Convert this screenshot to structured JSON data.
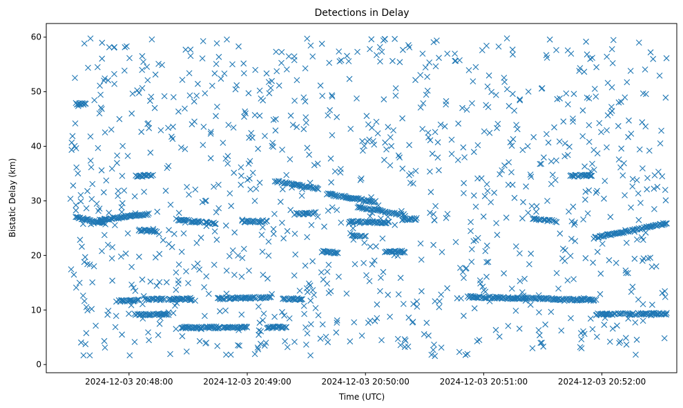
{
  "chart_data": {
    "type": "scatter",
    "title": "Detections in Delay",
    "xlabel": "Time (UTC)",
    "ylabel": "Bistatic Delay (km)",
    "marker": "x",
    "color": "#1f77b4",
    "xlim_seconds": [
      -42,
      278
    ],
    "ylim": [
      -1.5,
      62.5
    ],
    "x_origin": "2024-12-03 20:48:00",
    "xticks": [
      {
        "t": 0,
        "label": "2024-12-03 20:48:00"
      },
      {
        "t": 60,
        "label": "2024-12-03 20:49:00"
      },
      {
        "t": 120,
        "label": "2024-12-03 20:50:00"
      },
      {
        "t": 180,
        "label": "2024-12-03 20:51:00"
      },
      {
        "t": 240,
        "label": "2024-12-03 20:52:00"
      }
    ],
    "yticks": [
      0,
      10,
      20,
      30,
      40,
      50,
      60
    ],
    "tracks": [
      {
        "t0": -27,
        "t1": -12,
        "y0": 27.0,
        "y1": 25.8
      },
      {
        "t0": -27,
        "t1": -22,
        "y0": 47.8,
        "y1": 47.8
      },
      {
        "t0": -15,
        "t1": 10,
        "y0": 26.5,
        "y1": 27.6
      },
      {
        "t0": -5,
        "t1": 5,
        "y0": 11.6,
        "y1": 11.8
      },
      {
        "t0": 2,
        "t1": 20,
        "y0": 9.2,
        "y1": 9.2
      },
      {
        "t0": 3,
        "t1": 12,
        "y0": 34.5,
        "y1": 34.7
      },
      {
        "t0": 8,
        "t1": 18,
        "y0": 11.9,
        "y1": 12.0
      },
      {
        "t0": 5,
        "t1": 14,
        "y0": 24.6,
        "y1": 24.4
      },
      {
        "t0": 20,
        "t1": 32,
        "y0": 12.0,
        "y1": 12.0
      },
      {
        "t0": 24,
        "t1": 44,
        "y0": 26.6,
        "y1": 25.8
      },
      {
        "t0": 26,
        "t1": 60,
        "y0": 6.8,
        "y1": 6.8
      },
      {
        "t0": 45,
        "t1": 72,
        "y0": 12.1,
        "y1": 12.3
      },
      {
        "t0": 57,
        "t1": 70,
        "y0": 26.2,
        "y1": 26.3
      },
      {
        "t0": 70,
        "t1": 80,
        "y0": 6.8,
        "y1": 6.8
      },
      {
        "t0": 74,
        "t1": 96,
        "y0": 33.6,
        "y1": 32.2
      },
      {
        "t0": 78,
        "t1": 88,
        "y0": 12.0,
        "y1": 12.0
      },
      {
        "t0": 84,
        "t1": 94,
        "y0": 27.6,
        "y1": 27.7
      },
      {
        "t0": 98,
        "t1": 106,
        "y0": 20.7,
        "y1": 20.5
      },
      {
        "t0": 100,
        "t1": 125,
        "y0": 31.3,
        "y1": 29.8
      },
      {
        "t0": 112,
        "t1": 132,
        "y0": 26.2,
        "y1": 26.0
      },
      {
        "t0": 116,
        "t1": 140,
        "y0": 28.9,
        "y1": 27.4
      },
      {
        "t0": 113,
        "t1": 120,
        "y0": 23.6,
        "y1": 23.6
      },
      {
        "t0": 130,
        "t1": 140,
        "y0": 20.6,
        "y1": 20.7
      },
      {
        "t0": 138,
        "t1": 146,
        "y0": 26.6,
        "y1": 26.7
      },
      {
        "t0": 172,
        "t1": 237,
        "y0": 12.4,
        "y1": 11.8
      },
      {
        "t0": 205,
        "t1": 217,
        "y0": 26.7,
        "y1": 26.2
      },
      {
        "t0": 224,
        "t1": 235,
        "y0": 34.6,
        "y1": 34.6
      },
      {
        "t0": 236,
        "t1": 273,
        "y0": 23.2,
        "y1": 25.9
      },
      {
        "t0": 237,
        "t1": 273,
        "y0": 9.2,
        "y1": 9.3
      }
    ]
  }
}
